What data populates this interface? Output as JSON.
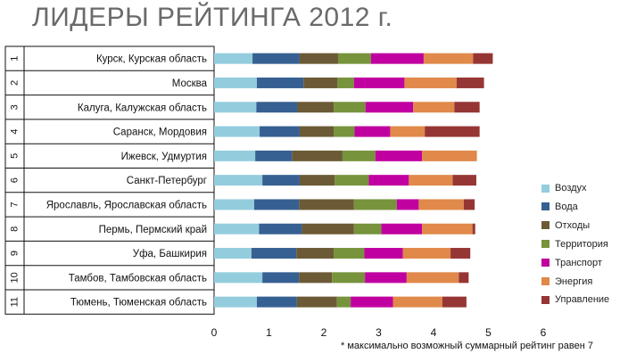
{
  "title": "ЛИДЕРЫ РЕЙТИНГА 2012 г.",
  "footnote": "* максимально возможный суммарный рейтинг равен 7",
  "chart_data": {
    "type": "bar",
    "orientation": "horizontal",
    "stacked": true,
    "title": "ЛИДЕРЫ РЕЙТИНГА 2012 г.",
    "xlim": [
      0,
      6
    ],
    "x_ticks": [
      "0",
      "1",
      "2",
      "3",
      "4",
      "5",
      "6"
    ],
    "ranks": [
      "1",
      "2",
      "3",
      "4",
      "5",
      "6",
      "7",
      "8",
      "9",
      "10",
      "11"
    ],
    "categories": [
      "Курск, Курская область",
      "Москва",
      "Калуга, Калужская область",
      "Саранск, Мордовия",
      "Ижевск, Удмуртия",
      "Санкт-Петербург",
      "Ярославль, Ярославская область",
      "Пермь, Пермский край",
      "Уфа, Башкирия",
      "Тамбов, Тамбовская область",
      "Тюмень, Тюменская область"
    ],
    "legend_position": "right",
    "series": [
      {
        "name": "Воздух",
        "color": "#93cddd",
        "values": [
          0.7,
          0.78,
          0.77,
          0.83,
          0.75,
          0.88,
          0.73,
          0.82,
          0.68,
          0.88,
          0.78
        ]
      },
      {
        "name": "Вода",
        "color": "#376092",
        "values": [
          0.86,
          0.85,
          0.75,
          0.73,
          0.67,
          0.68,
          0.82,
          0.78,
          0.82,
          0.67,
          0.73
        ]
      },
      {
        "name": "Отходы",
        "color": "#6b5a35",
        "values": [
          0.7,
          0.62,
          0.66,
          0.62,
          0.92,
          0.64,
          1.0,
          0.95,
          0.68,
          0.6,
          0.73
        ]
      },
      {
        "name": "Территория",
        "color": "#77933c",
        "values": [
          0.6,
          0.3,
          0.58,
          0.38,
          0.6,
          0.62,
          0.78,
          0.5,
          0.56,
          0.6,
          0.25
        ]
      },
      {
        "name": "Транспорт",
        "color": "#c000a0",
        "values": [
          0.96,
          0.92,
          0.87,
          0.65,
          0.85,
          0.73,
          0.4,
          0.74,
          0.7,
          0.76,
          0.77
        ]
      },
      {
        "name": "Энергия",
        "color": "#e0894a",
        "values": [
          0.9,
          0.95,
          0.75,
          0.63,
          1.0,
          0.8,
          0.82,
          0.92,
          0.87,
          0.95,
          0.9
        ]
      },
      {
        "name": "Управление",
        "color": "#963634",
        "values": [
          0.36,
          0.5,
          0.46,
          1.0,
          0.0,
          0.43,
          0.2,
          0.05,
          0.36,
          0.18,
          0.44
        ]
      }
    ]
  }
}
